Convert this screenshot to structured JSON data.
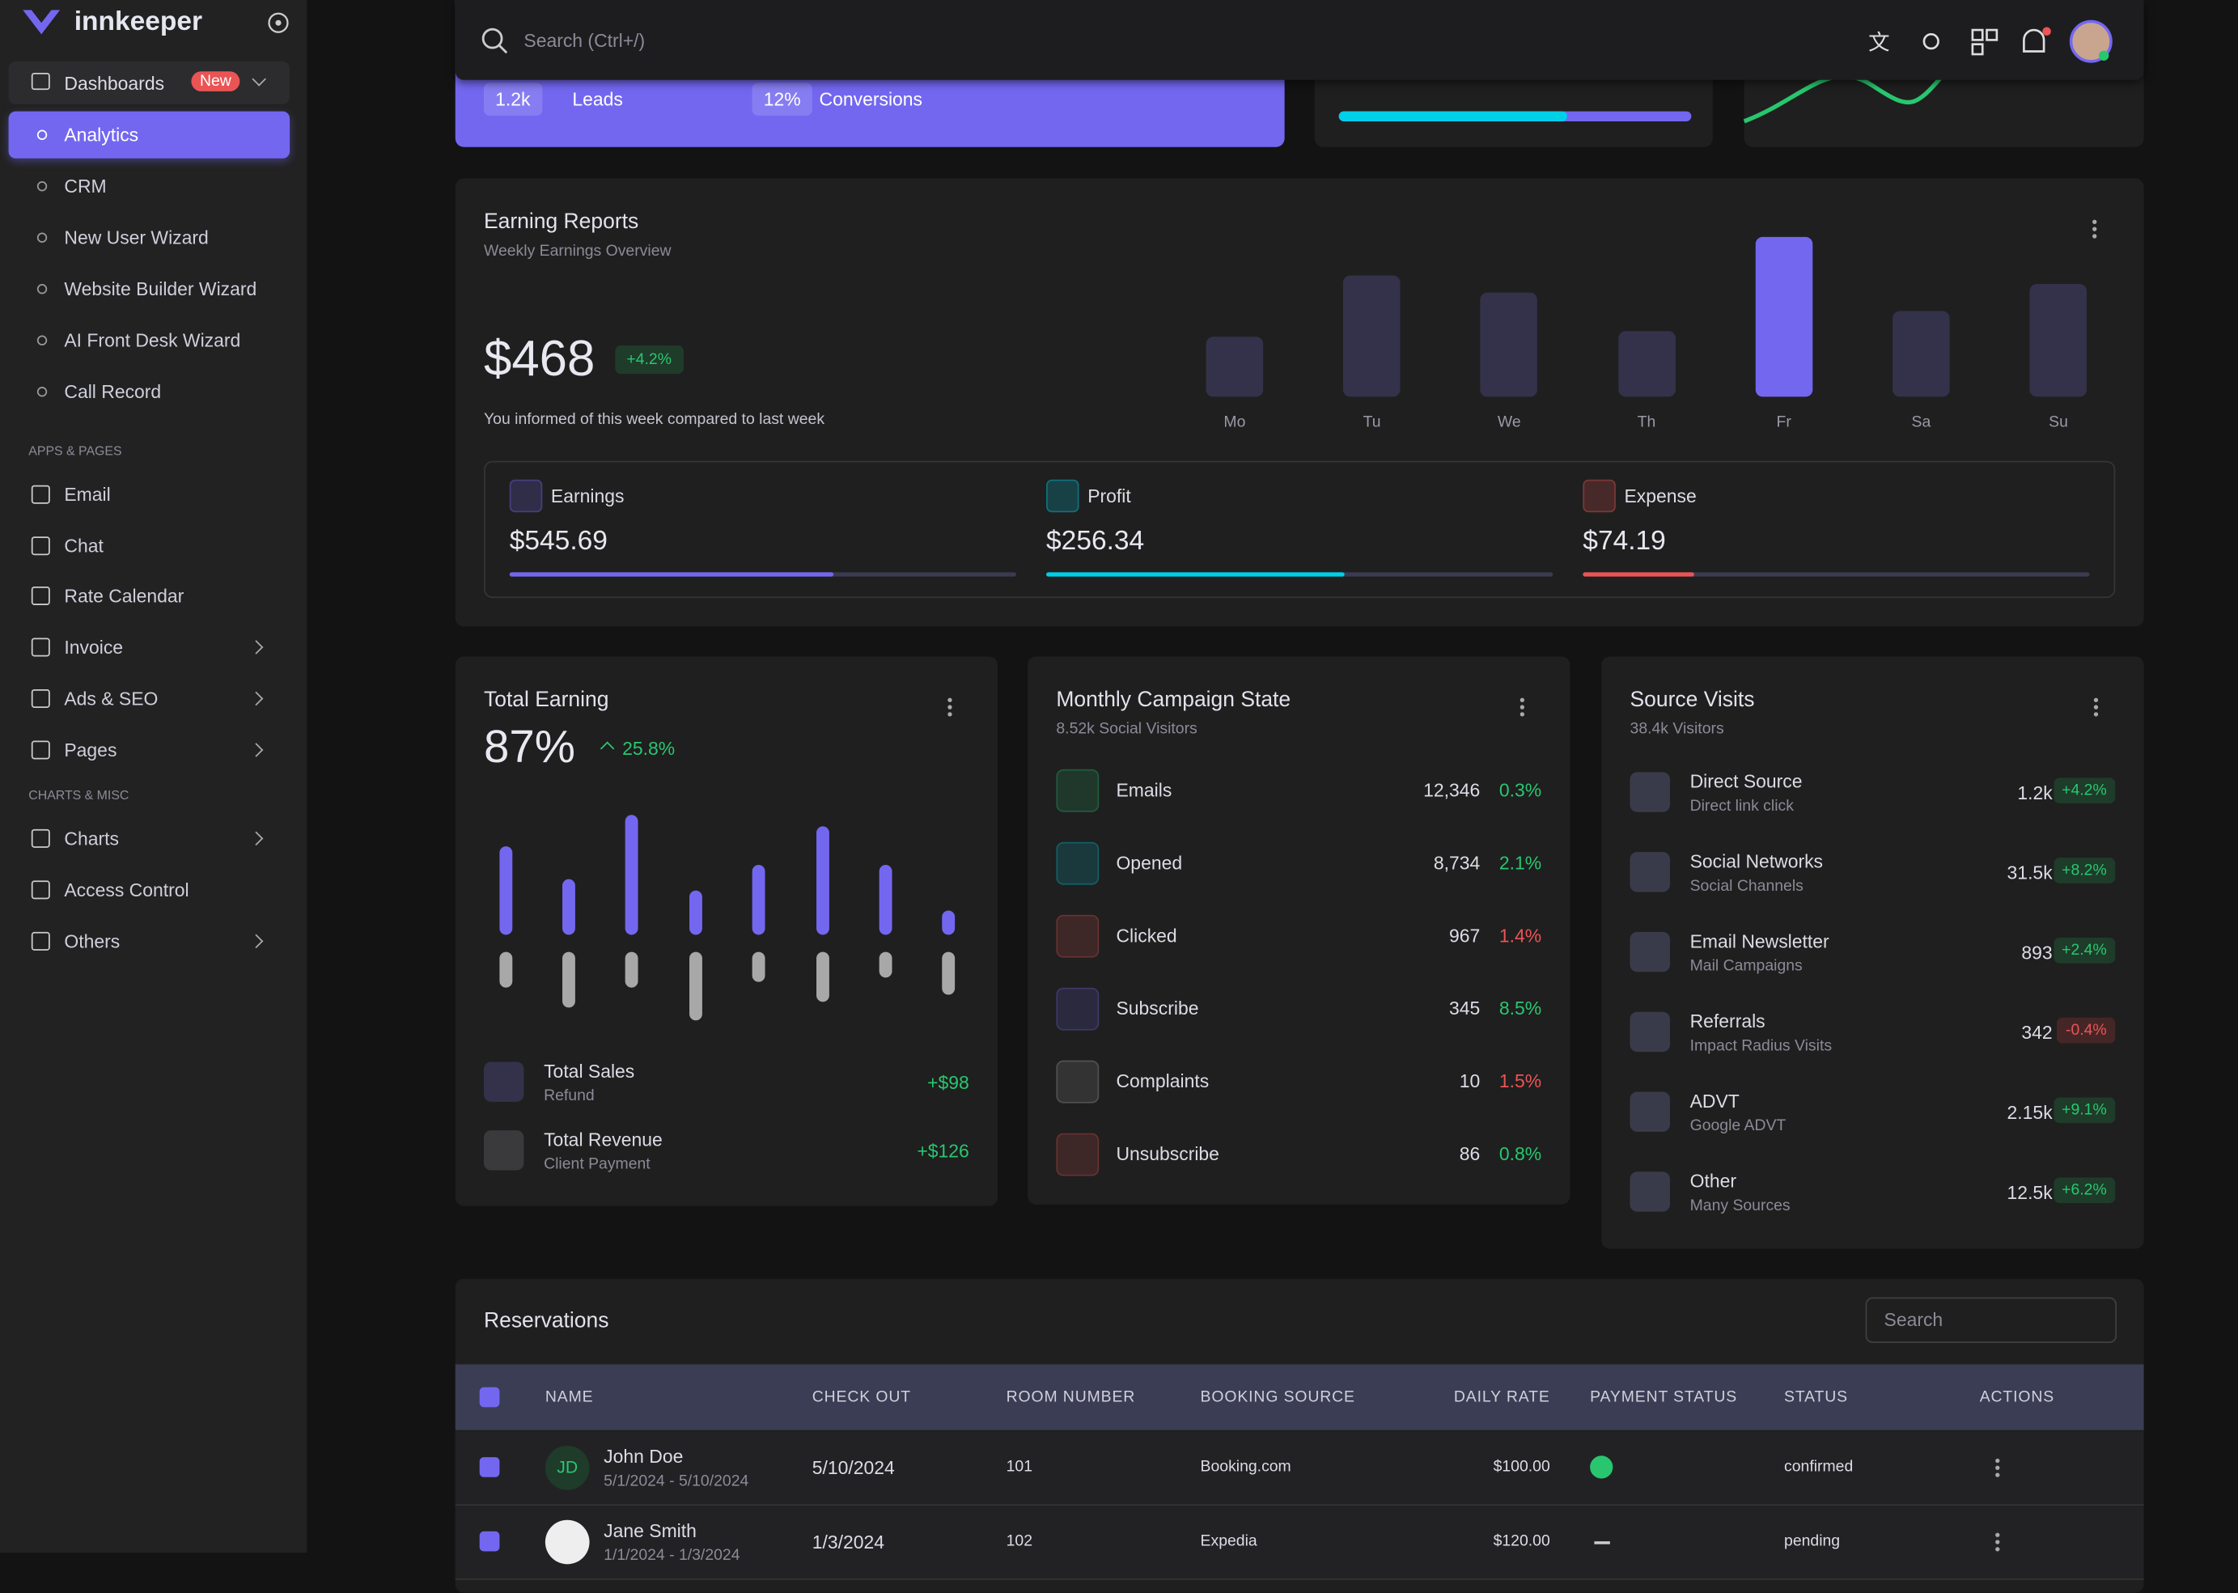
{
  "sidebar": {
    "brand": "innkeeper",
    "dashboards": {
      "label": "Dashboards",
      "badge": "New",
      "items": [
        "Analytics",
        "CRM",
        "New User Wizard",
        "Website Builder Wizard",
        "AI Front Desk Wizard",
        "Call Record"
      ],
      "active": 0
    },
    "sections": [
      {
        "heading": "APPS & PAGES",
        "items": [
          {
            "label": "Email",
            "submenu": false
          },
          {
            "label": "Chat",
            "submenu": false
          },
          {
            "label": "Rate Calendar",
            "submenu": false
          },
          {
            "label": "Invoice",
            "submenu": true
          },
          {
            "label": "Ads & SEO",
            "submenu": true
          },
          {
            "label": "Pages",
            "submenu": true
          }
        ]
      },
      {
        "heading": "CHARTS & MISC",
        "items": [
          {
            "label": "Charts",
            "submenu": true
          },
          {
            "label": "Access Control",
            "submenu": false
          },
          {
            "label": "Others",
            "submenu": true
          }
        ]
      }
    ]
  },
  "topbar": {
    "search_placeholder": "Search (Ctrl+/)"
  },
  "top_card": {
    "stats": [
      {
        "value": "1.2k",
        "label": "Leads"
      },
      {
        "value": "12%",
        "label": "Conversions"
      }
    ]
  },
  "earning_reports": {
    "title": "Earning Reports",
    "subtitle": "Weekly Earnings Overview",
    "amount": "$468",
    "change": "+4.2%",
    "note": "You informed of this week compared to last week",
    "chart": {
      "type": "bar",
      "categories": [
        "Mo",
        "Tu",
        "We",
        "Th",
        "Fr",
        "Sa",
        "Su"
      ],
      "values": [
        42,
        85,
        73,
        46,
        112,
        60,
        79
      ],
      "highlight": 4
    },
    "stats": [
      {
        "label": "Earnings",
        "value": "$545.69",
        "progress": 64,
        "color": "#7367f0"
      },
      {
        "label": "Profit",
        "value": "$256.34",
        "progress": 59,
        "color": "#00cfe8"
      },
      {
        "label": "Expense",
        "value": "$74.19",
        "progress": 22,
        "color": "#ea5455"
      }
    ]
  },
  "total_earning": {
    "title": "Total Earning",
    "percent": "87%",
    "change": "25.8%",
    "chart": {
      "type": "bar",
      "series": [
        {
          "color": "#7367f0",
          "values": [
            62,
            39,
            84,
            31,
            49,
            76,
            49,
            17
          ]
        },
        {
          "color": "#a8a8a8",
          "values": [
            25,
            39,
            25,
            48,
            21,
            35,
            18,
            30
          ]
        }
      ]
    },
    "items": [
      {
        "title": "Total Sales",
        "subtitle": "Refund",
        "amount": "+$98"
      },
      {
        "title": "Total Revenue",
        "subtitle": "Client Payment",
        "amount": "+$126"
      }
    ]
  },
  "campaign": {
    "title": "Monthly Campaign State",
    "subtitle": "8.52k Social Visitors",
    "rows": [
      {
        "name": "Emails",
        "count": "12,346",
        "percent": "0.3%",
        "trend": "up"
      },
      {
        "name": "Opened",
        "count": "8,734",
        "percent": "2.1%",
        "trend": "up"
      },
      {
        "name": "Clicked",
        "count": "967",
        "percent": "1.4%",
        "trend": "down"
      },
      {
        "name": "Subscribe",
        "count": "345",
        "percent": "8.5%",
        "trend": "up"
      },
      {
        "name": "Complaints",
        "count": "10",
        "percent": "1.5%",
        "trend": "down"
      },
      {
        "name": "Unsubscribe",
        "count": "86",
        "percent": "0.8%",
        "trend": "up"
      }
    ]
  },
  "source_visits": {
    "title": "Source Visits",
    "subtitle": "38.4k Visitors",
    "rows": [
      {
        "name": "Direct Source",
        "sub": "Direct link click",
        "value": "1.2k",
        "change": "+4.2%"
      },
      {
        "name": "Social Networks",
        "sub": "Social Channels",
        "value": "31.5k",
        "change": "+8.2%"
      },
      {
        "name": "Email Newsletter",
        "sub": "Mail Campaigns",
        "value": "893",
        "change": "+2.4%"
      },
      {
        "name": "Referrals",
        "sub": "Impact Radius Visits",
        "value": "342",
        "change": "-0.4%"
      },
      {
        "name": "ADVT",
        "sub": "Google ADVT",
        "value": "2.15k",
        "change": "+9.1%"
      },
      {
        "name": "Other",
        "sub": "Many Sources",
        "value": "12.5k",
        "change": "+6.2%"
      }
    ]
  },
  "reservations": {
    "title": "Reservations",
    "search_placeholder": "Search",
    "headers": [
      "NAME",
      "CHECK OUT",
      "ROOM NUMBER",
      "BOOKING SOURCE",
      "DAILY RATE",
      "PAYMENT STATUS",
      "STATUS",
      "ACTIONS"
    ],
    "rows": [
      {
        "initials": "JD",
        "name": "John Doe",
        "dates": "5/1/2024 - 5/10/2024",
        "checkout": "5/10/2024",
        "room": "101",
        "source": "Booking.com",
        "rate": "$100.00",
        "paid": true,
        "status": "confirmed"
      },
      {
        "initials": null,
        "name": "Jane Smith",
        "dates": "1/1/2024 - 1/3/2024",
        "checkout": "1/3/2024",
        "room": "102",
        "source": "Expedia",
        "rate": "$120.00",
        "paid": false,
        "status": "pending"
      }
    ]
  }
}
